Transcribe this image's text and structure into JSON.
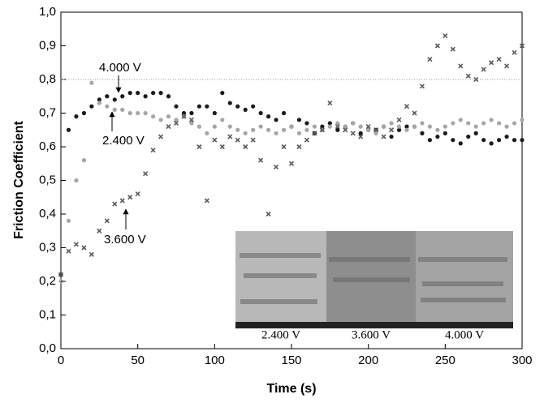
{
  "chart_data": {
    "type": "scatter",
    "x_label": "Time (s)",
    "y_label": "Friction Coefficient",
    "xlim": [
      0,
      300
    ],
    "xticks": [
      0,
      50,
      100,
      150,
      200,
      250,
      300
    ],
    "ylim": [
      0,
      1.0
    ],
    "yticks": [
      {
        "value": 0,
        "label": "0,0"
      },
      {
        "value": 0.1,
        "label": "0,1"
      },
      {
        "value": 0.2,
        "label": "0,2"
      },
      {
        "value": 0.3,
        "label": "0,3"
      },
      {
        "value": 0.4,
        "label": "0,4"
      },
      {
        "value": 0.5,
        "label": "0,5"
      },
      {
        "value": 0.6,
        "label": "0,6"
      },
      {
        "value": 0.7,
        "label": "0,7"
      },
      {
        "value": 0.8,
        "label": "0,8"
      },
      {
        "value": 0.9,
        "label": "0,9"
      },
      {
        "value": 1.0,
        "label": "1,0"
      }
    ],
    "reference_line": 0.8,
    "x": [
      0,
      5,
      10,
      15,
      20,
      25,
      30,
      35,
      40,
      45,
      50,
      55,
      60,
      65,
      70,
      75,
      80,
      85,
      90,
      95,
      100,
      105,
      110,
      115,
      120,
      125,
      130,
      135,
      140,
      145,
      150,
      155,
      160,
      165,
      170,
      175,
      180,
      185,
      190,
      195,
      200,
      205,
      210,
      215,
      220,
      225,
      230,
      235,
      240,
      245,
      250,
      255,
      260,
      265,
      270,
      275,
      280,
      285,
      290,
      295,
      300
    ],
    "series": [
      {
        "name": "4.000 V",
        "color": "#1a1a1a",
        "marker": "circle",
        "values": [
          0.22,
          0.65,
          0.69,
          0.7,
          0.72,
          0.74,
          0.75,
          0.74,
          0.75,
          0.76,
          0.76,
          0.75,
          0.76,
          0.76,
          0.75,
          0.72,
          0.7,
          0.7,
          0.72,
          0.72,
          0.7,
          0.76,
          0.73,
          0.72,
          0.71,
          0.72,
          0.7,
          0.69,
          0.68,
          0.7,
          0.66,
          0.68,
          0.67,
          0.64,
          0.66,
          0.67,
          0.65,
          0.66,
          0.67,
          0.64,
          0.65,
          0.65,
          0.66,
          0.63,
          0.65,
          0.66,
          0.66,
          0.64,
          0.62,
          0.63,
          0.64,
          0.62,
          0.61,
          0.63,
          0.64,
          0.62,
          0.61,
          0.62,
          0.63,
          0.62,
          0.62
        ]
      },
      {
        "name": "2.400 V",
        "color": "#a6a6a6",
        "marker": "circle",
        "values": [
          0.2,
          0.38,
          0.5,
          0.56,
          0.79,
          0.73,
          0.72,
          0.71,
          0.71,
          0.7,
          0.7,
          0.7,
          0.69,
          0.68,
          0.69,
          0.68,
          0.69,
          0.67,
          0.66,
          0.64,
          0.66,
          0.68,
          0.66,
          0.65,
          0.64,
          0.65,
          0.66,
          0.65,
          0.64,
          0.65,
          0.66,
          0.64,
          0.65,
          0.66,
          0.65,
          0.66,
          0.67,
          0.66,
          0.67,
          0.66,
          0.65,
          0.64,
          0.66,
          0.67,
          0.66,
          0.65,
          0.66,
          0.67,
          0.66,
          0.65,
          0.66,
          0.67,
          0.68,
          0.67,
          0.66,
          0.67,
          0.68,
          0.67,
          0.66,
          0.67,
          0.68
        ]
      },
      {
        "name": "3.600 V",
        "color": "#5a5a5a",
        "marker": "cross",
        "values": [
          0.22,
          0.29,
          0.31,
          0.3,
          0.28,
          0.35,
          0.38,
          0.43,
          0.44,
          0.45,
          0.46,
          0.52,
          0.59,
          0.63,
          0.66,
          0.67,
          0.69,
          0.68,
          0.6,
          0.44,
          0.62,
          0.6,
          0.63,
          0.62,
          0.6,
          0.62,
          0.56,
          0.4,
          0.54,
          0.6,
          0.55,
          0.6,
          0.62,
          0.64,
          0.65,
          0.73,
          0.66,
          0.65,
          0.64,
          0.63,
          0.66,
          0.65,
          0.63,
          0.65,
          0.68,
          0.72,
          0.7,
          0.78,
          0.86,
          0.9,
          0.93,
          0.89,
          0.84,
          0.81,
          0.8,
          0.83,
          0.85,
          0.86,
          0.84,
          0.88,
          0.9
        ]
      }
    ],
    "inset_labels": [
      "2.400 V",
      "3.600 V",
      "4.000 V"
    ]
  }
}
